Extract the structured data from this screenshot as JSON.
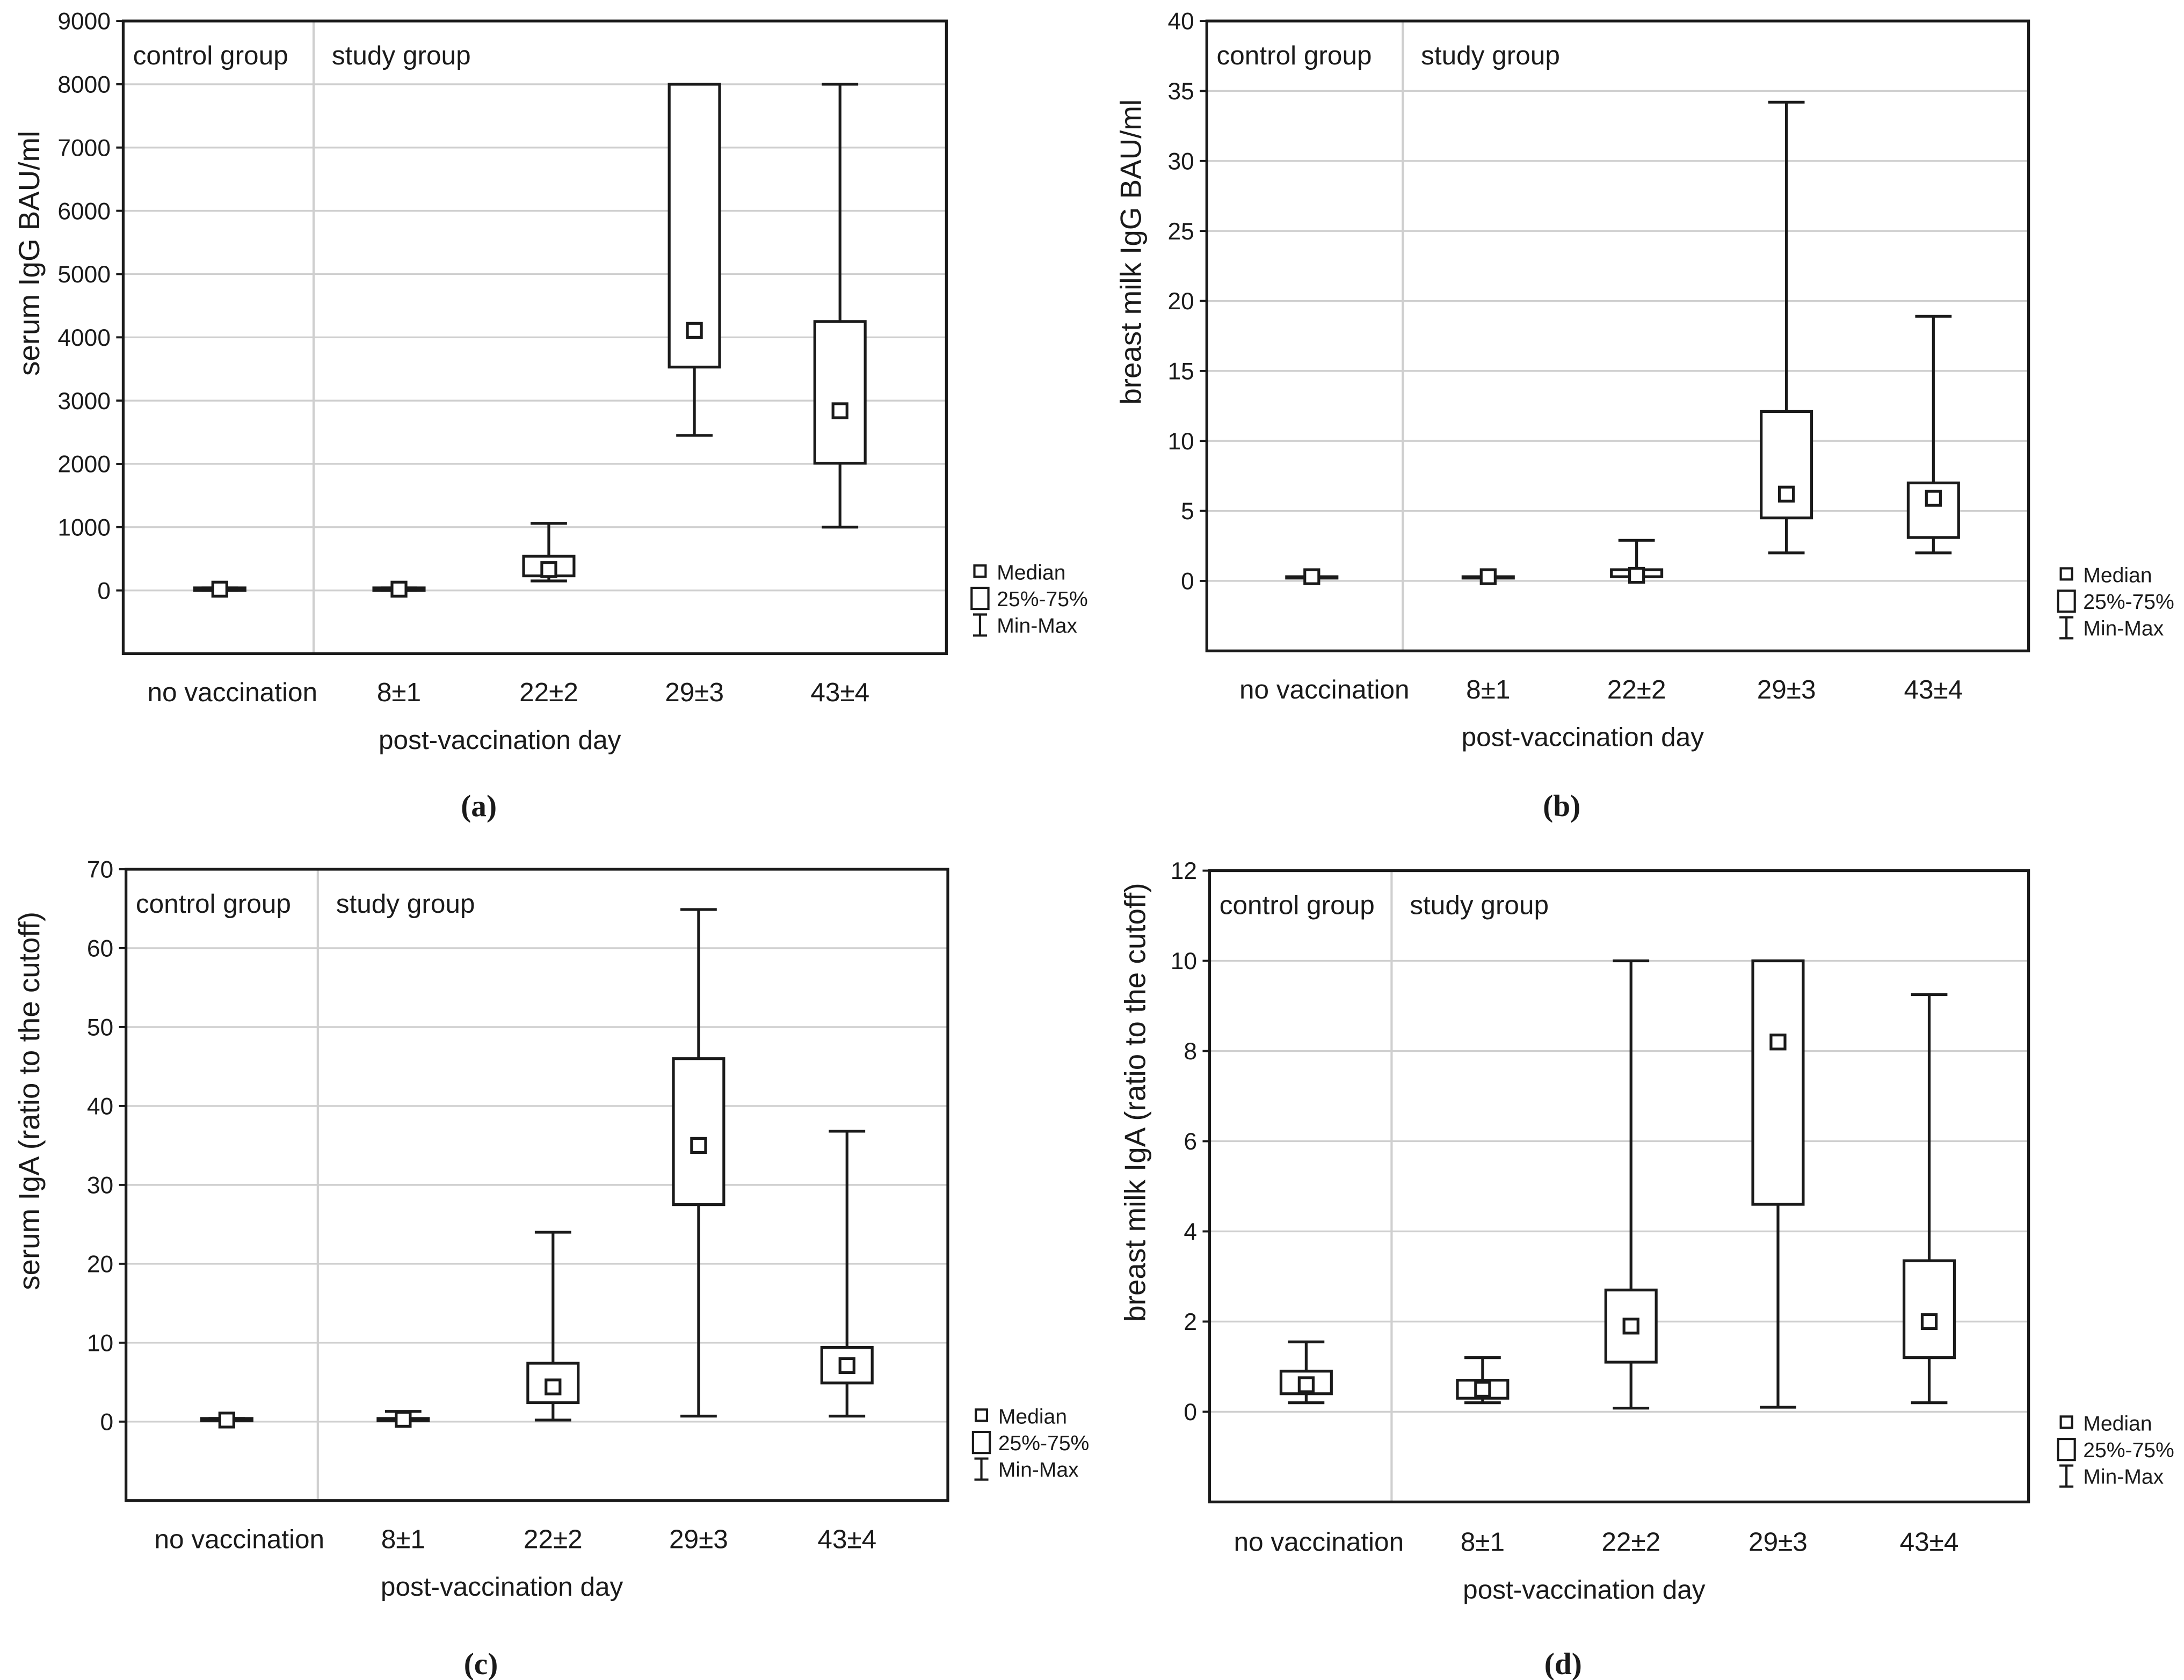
{
  "legend": {
    "median": "Median",
    "iqr": "25%-75%",
    "range": "Min-Max"
  },
  "chart_data": [
    {
      "type": "box",
      "panel": "(a)",
      "ylabel": "serum IgG BAU/ml",
      "xlabel": "post-vaccination day",
      "group_labels": [
        "control group",
        "study group"
      ],
      "ylim": [
        -1000,
        9000
      ],
      "yticks": [
        0,
        1000,
        2000,
        3000,
        4000,
        5000,
        6000,
        7000,
        8000,
        9000
      ],
      "categories": [
        "no vaccination",
        "8±1",
        "22±2",
        "29±3",
        "43±4"
      ],
      "min": [
        0,
        0,
        150,
        2450,
        1000
      ],
      "q1": [
        0,
        0,
        230,
        3530,
        2010
      ],
      "median": [
        20,
        20,
        330,
        4110,
        2840
      ],
      "q3": [
        40,
        40,
        540,
        8000,
        4250
      ],
      "max": [
        40,
        40,
        1060,
        8000,
        8000
      ]
    },
    {
      "type": "box",
      "panel": "(b)",
      "ylabel": "breast milk IgG BAU/ml",
      "xlabel": "post-vaccination day",
      "group_labels": [
        "control group",
        "study group"
      ],
      "ylim": [
        -5,
        40
      ],
      "yticks": [
        0,
        5,
        10,
        15,
        20,
        25,
        30,
        35,
        40
      ],
      "categories": [
        "no vaccination",
        "8±1",
        "22±2",
        "29±3",
        "43±4"
      ],
      "min": [
        0.3,
        0.3,
        0.3,
        2.0,
        2.0
      ],
      "q1": [
        0.3,
        0.3,
        0.3,
        4.5,
        3.1
      ],
      "median": [
        0.3,
        0.3,
        0.4,
        6.2,
        5.9
      ],
      "q3": [
        0.3,
        0.3,
        0.8,
        12.1,
        7.0
      ],
      "max": [
        0.3,
        0.3,
        2.9,
        34.2,
        18.9
      ]
    },
    {
      "type": "box",
      "panel": "(c)",
      "ylabel": "serum IgA (ratio to the cutoff)",
      "xlabel": "post-vaccination day",
      "group_labels": [
        "control group",
        "study group"
      ],
      "ylim": [
        -10,
        70
      ],
      "yticks": [
        0,
        10,
        20,
        30,
        40,
        50,
        60,
        70
      ],
      "categories": [
        "no vaccination",
        "8±1",
        "22±2",
        "29±3",
        "43±4"
      ],
      "min": [
        0.1,
        0.1,
        0.2,
        0.7,
        0.7
      ],
      "q1": [
        0.1,
        0.1,
        2.4,
        27.5,
        4.9
      ],
      "median": [
        0.2,
        0.3,
        4.4,
        35.0,
        7.1
      ],
      "q3": [
        0.4,
        0.4,
        7.4,
        46.0,
        9.4
      ],
      "max": [
        0.4,
        1.3,
        24.0,
        64.9,
        36.8
      ]
    },
    {
      "type": "box",
      "panel": "(d)",
      "ylabel": "breast milk IgA (ratio to the cutoff)",
      "xlabel": "post-vaccination day",
      "group_labels": [
        "control group",
        "study group"
      ],
      "ylim": [
        -2,
        12
      ],
      "yticks": [
        0,
        2,
        4,
        6,
        8,
        10,
        12
      ],
      "categories": [
        "no vaccination",
        "8±1",
        "22±2",
        "29±3",
        "43±4"
      ],
      "min": [
        0.2,
        0.2,
        0.08,
        0.1,
        0.2
      ],
      "q1": [
        0.4,
        0.3,
        1.1,
        4.6,
        1.2
      ],
      "median": [
        0.6,
        0.5,
        1.9,
        8.2,
        2.0
      ],
      "q3": [
        0.9,
        0.7,
        2.7,
        10.0,
        3.35
      ],
      "max": [
        1.55,
        1.2,
        10.0,
        10.0,
        9.25
      ]
    }
  ]
}
